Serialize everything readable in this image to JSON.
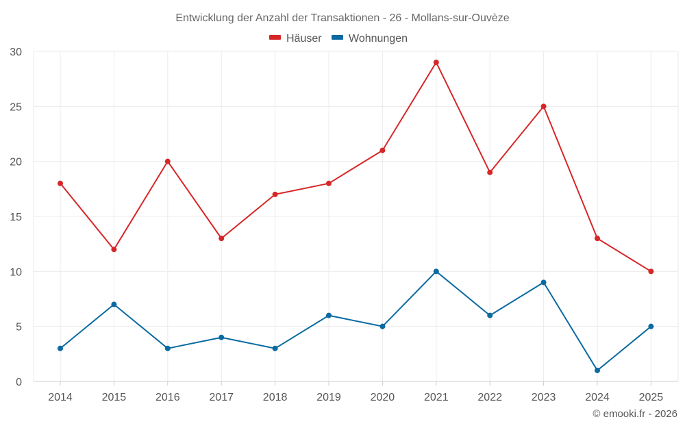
{
  "chart_data": {
    "type": "line",
    "title": "Entwicklung der Anzahl der Transaktionen - 26 - Mollans-sur-Ouvèze",
    "categories": [
      "2014",
      "2015",
      "2016",
      "2017",
      "2018",
      "2019",
      "2020",
      "2021",
      "2022",
      "2023",
      "2024",
      "2025"
    ],
    "series": [
      {
        "name": "Häuser",
        "color": "#d62728",
        "values": [
          18,
          12,
          20,
          13,
          17,
          18,
          21,
          29,
          19,
          25,
          13,
          10
        ]
      },
      {
        "name": "Wohnungen",
        "color": "#0a6aa1",
        "values": [
          3,
          7,
          3,
          4,
          3,
          6,
          5,
          10,
          6,
          9,
          1,
          5
        ]
      }
    ],
    "ylim": [
      0,
      30
    ],
    "yticks": [
      0,
      5,
      10,
      15,
      20,
      25,
      30
    ],
    "grid": true,
    "legend_position": "top-center",
    "xlabel": "",
    "ylabel": ""
  },
  "credit": "© emooki.fr - 2026"
}
